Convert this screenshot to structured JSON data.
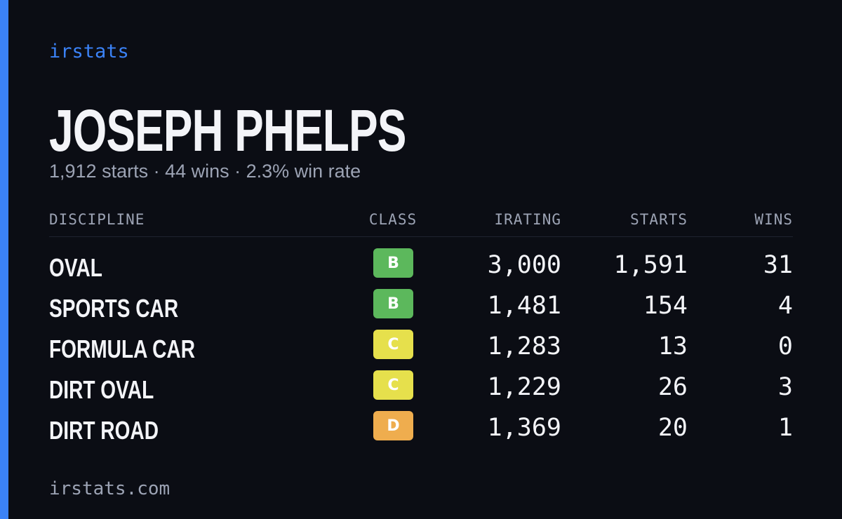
{
  "brand": "irstats",
  "header": {
    "title": "JOSEPH PHELPS",
    "subtitle": "1,912 starts · 44 wins · 2.3% win rate"
  },
  "table": {
    "columns": [
      "DISCIPLINE",
      "CLASS",
      "IRATING",
      "STARTS",
      "WINS"
    ],
    "rows": [
      {
        "discipline": "OVAL",
        "class": "B",
        "class_color": "#5cb85c",
        "irating": "3,000",
        "starts": "1,591",
        "wins": "31"
      },
      {
        "discipline": "SPORTS CAR",
        "class": "B",
        "class_color": "#5cb85c",
        "irating": "1,481",
        "starts": "154",
        "wins": "4"
      },
      {
        "discipline": "FORMULA CAR",
        "class": "C",
        "class_color": "#e6e04c",
        "irating": "1,283",
        "starts": "13",
        "wins": "0"
      },
      {
        "discipline": "DIRT OVAL",
        "class": "C",
        "class_color": "#e6e04c",
        "irating": "1,229",
        "starts": "26",
        "wins": "3"
      },
      {
        "discipline": "DIRT ROAD",
        "class": "D",
        "class_color": "#efad4e",
        "irating": "1,369",
        "starts": "20",
        "wins": "1"
      }
    ]
  },
  "footer": "irstats.com"
}
